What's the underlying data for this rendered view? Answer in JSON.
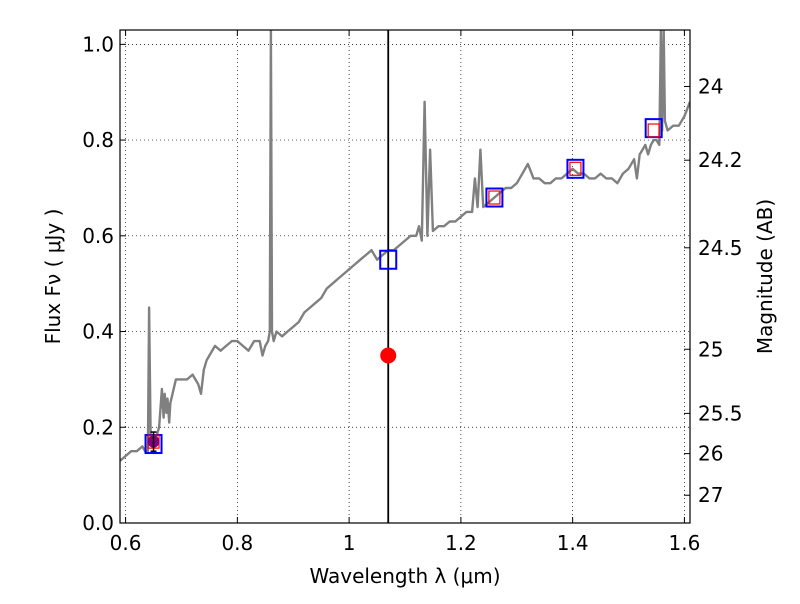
{
  "chart_data": {
    "type": "line",
    "xlabel": "Wavelength  λ (μm)",
    "ylabel": "Flux  Fν  ( μJy )",
    "ylabel_right": "Magnitude (AB)",
    "xlim": [
      0.59,
      1.61
    ],
    "ylim": [
      0.0,
      1.03
    ],
    "grid": true,
    "x_ticks": [
      0.6,
      0.8,
      1.0,
      1.2,
      1.4,
      1.6
    ],
    "x_tick_labels": [
      "0.6",
      "0.8",
      "1",
      "1.2",
      "1.4",
      "1.6"
    ],
    "y_ticks": [
      0.0,
      0.2,
      0.4,
      0.6,
      0.8,
      1.0
    ],
    "y_tick_labels": [
      "0.0",
      "0.2",
      "0.4",
      "0.6",
      "0.8",
      "1.0"
    ],
    "right_axis_ticks": [
      {
        "flux": 0.912,
        "label": "24"
      },
      {
        "flux": 0.758,
        "label": "24.2"
      },
      {
        "flux": 0.575,
        "label": "24.5"
      },
      {
        "flux": 0.363,
        "label": "25"
      },
      {
        "flux": 0.229,
        "label": "25.5"
      },
      {
        "flux": 0.145,
        "label": "26"
      },
      {
        "flux": 0.058,
        "label": "27"
      }
    ],
    "series": [
      {
        "kind": "model_spectrum",
        "color": "#808080",
        "x": [
          0.59,
          0.6,
          0.61,
          0.62,
          0.63,
          0.635,
          0.64,
          0.642,
          0.645,
          0.648,
          0.65,
          0.655,
          0.66,
          0.665,
          0.668,
          0.67,
          0.673,
          0.675,
          0.678,
          0.68,
          0.69,
          0.7,
          0.71,
          0.72,
          0.73,
          0.735,
          0.74,
          0.745,
          0.75,
          0.76,
          0.77,
          0.78,
          0.79,
          0.8,
          0.81,
          0.82,
          0.83,
          0.84,
          0.845,
          0.85,
          0.855,
          0.858,
          0.86,
          0.862,
          0.865,
          0.87,
          0.88,
          0.89,
          0.9,
          0.91,
          0.92,
          0.93,
          0.94,
          0.95,
          0.96,
          0.97,
          0.98,
          0.99,
          1.0,
          1.01,
          1.02,
          1.03,
          1.04,
          1.05,
          1.06,
          1.07,
          1.08,
          1.09,
          1.1,
          1.11,
          1.12,
          1.125,
          1.13,
          1.135,
          1.14,
          1.145,
          1.15,
          1.16,
          1.17,
          1.18,
          1.19,
          1.2,
          1.21,
          1.22,
          1.225,
          1.23,
          1.235,
          1.24,
          1.25,
          1.26,
          1.27,
          1.28,
          1.29,
          1.3,
          1.31,
          1.32,
          1.33,
          1.34,
          1.35,
          1.36,
          1.37,
          1.38,
          1.39,
          1.4,
          1.41,
          1.42,
          1.43,
          1.44,
          1.45,
          1.46,
          1.47,
          1.48,
          1.49,
          1.5,
          1.51,
          1.515,
          1.52,
          1.525,
          1.53,
          1.535,
          1.54,
          1.545,
          1.55,
          1.555,
          1.558,
          1.56,
          1.563,
          1.565,
          1.57,
          1.58,
          1.59,
          1.6,
          1.61
        ],
        "y": [
          0.13,
          0.14,
          0.15,
          0.15,
          0.16,
          0.15,
          0.15,
          0.45,
          0.17,
          0.17,
          0.17,
          0.18,
          0.2,
          0.28,
          0.22,
          0.27,
          0.23,
          0.26,
          0.21,
          0.25,
          0.3,
          0.3,
          0.3,
          0.31,
          0.29,
          0.27,
          0.32,
          0.34,
          0.35,
          0.37,
          0.36,
          0.37,
          0.38,
          0.38,
          0.37,
          0.36,
          0.38,
          0.38,
          0.35,
          0.37,
          0.38,
          0.4,
          1.03,
          0.4,
          0.38,
          0.4,
          0.39,
          0.4,
          0.41,
          0.42,
          0.44,
          0.45,
          0.46,
          0.47,
          0.49,
          0.5,
          0.51,
          0.52,
          0.53,
          0.54,
          0.55,
          0.56,
          0.57,
          0.55,
          0.56,
          0.57,
          0.57,
          0.58,
          0.59,
          0.6,
          0.6,
          0.62,
          0.59,
          0.88,
          0.6,
          0.78,
          0.61,
          0.62,
          0.62,
          0.63,
          0.63,
          0.64,
          0.65,
          0.65,
          0.72,
          0.66,
          0.78,
          0.66,
          0.67,
          0.68,
          0.69,
          0.7,
          0.7,
          0.71,
          0.73,
          0.75,
          0.72,
          0.72,
          0.71,
          0.71,
          0.72,
          0.72,
          0.73,
          0.74,
          0.73,
          0.73,
          0.72,
          0.72,
          0.73,
          0.72,
          0.72,
          0.71,
          0.73,
          0.74,
          0.76,
          0.72,
          0.77,
          0.78,
          0.79,
          0.77,
          0.79,
          0.8,
          0.8,
          0.79,
          1.03,
          0.82,
          1.03,
          0.84,
          0.82,
          0.83,
          0.83,
          0.85,
          0.88
        ]
      },
      {
        "kind": "model_photometry",
        "marker": "open_square",
        "color": "#0000ff",
        "x": [
          0.65,
          1.07,
          1.26,
          1.405,
          1.545
        ],
        "y": [
          0.165,
          0.55,
          0.68,
          0.74,
          0.825
        ]
      },
      {
        "kind": "observed_photometry",
        "marker": "open_square",
        "color": "#ff0000",
        "x": [
          0.65,
          1.26,
          1.405,
          1.545
        ],
        "y": [
          0.17,
          0.68,
          0.74,
          0.82
        ]
      },
      {
        "kind": "photometry_point",
        "marker": "filled_circle",
        "color": "#800080",
        "x": [
          0.65
        ],
        "y": [
          0.17
        ],
        "error": [
          0.02
        ]
      },
      {
        "kind": "detection_point",
        "marker": "filled_circle",
        "color": "#ff0000",
        "x": [
          1.07
        ],
        "y": [
          0.35
        ]
      }
    ],
    "vertical_line": {
      "x": 1.07,
      "color": "#000000"
    }
  }
}
